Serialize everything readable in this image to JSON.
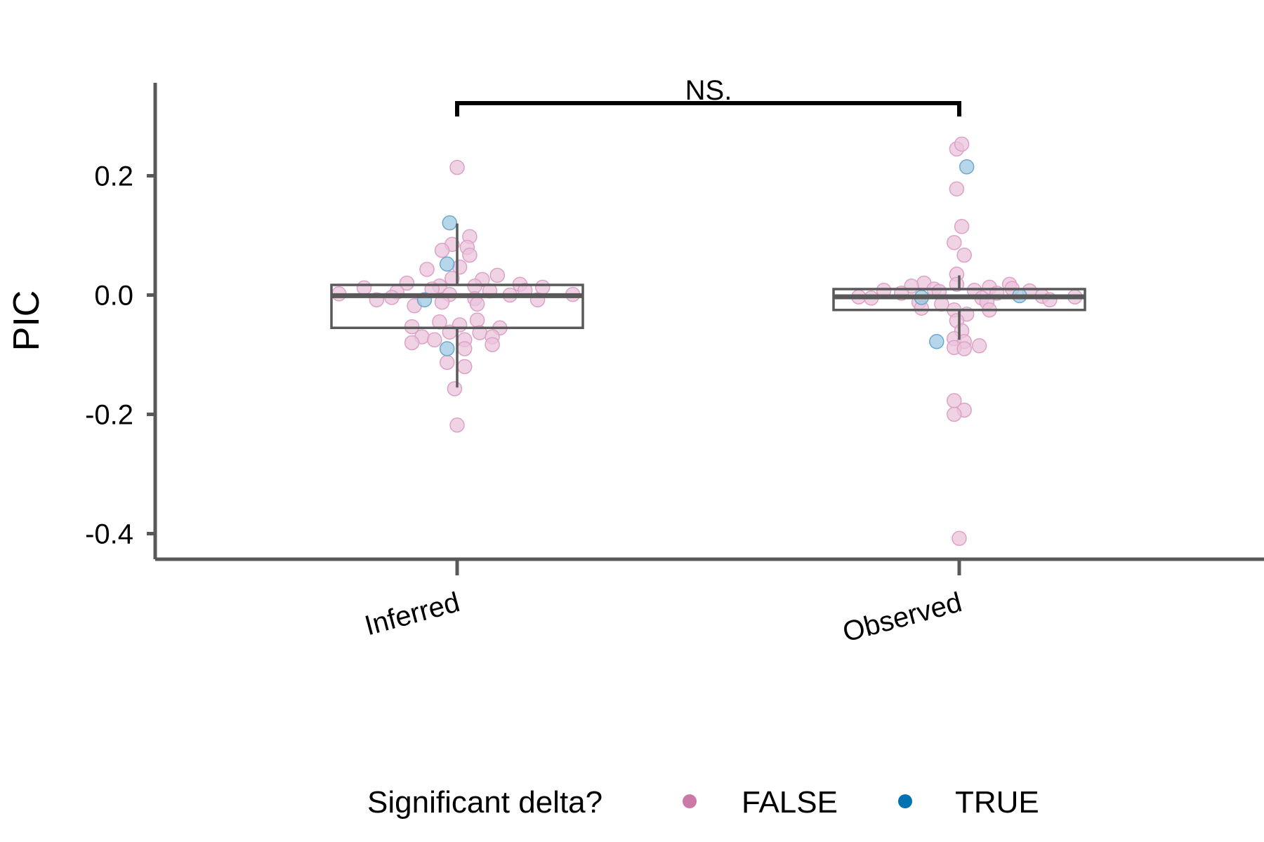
{
  "chart_data": {
    "type": "boxplot",
    "title": "",
    "xlabel": "",
    "ylabel": "PIC",
    "ylim": [
      -0.44,
      0.35
    ],
    "yticks": [
      {
        "value": 0.2,
        "label": "0.2"
      },
      {
        "value": 0.0,
        "label": "0.0"
      },
      {
        "value": -0.2,
        "label": "-0.2"
      },
      {
        "value": -0.4,
        "label": "-0.4"
      }
    ],
    "categories": [
      "Inferred",
      "Observed"
    ],
    "boxes": [
      {
        "category": "Inferred",
        "q1": -0.055,
        "median": -0.001,
        "q3": 0.017,
        "whisker_low": -0.155,
        "whisker_high": 0.12
      },
      {
        "category": "Observed",
        "q1": -0.025,
        "median": -0.003,
        "q3": 0.01,
        "whisker_low": -0.075,
        "whisker_high": 0.033
      }
    ],
    "comparison": {
      "from": "Inferred",
      "to": "Observed",
      "label": "NS.",
      "y": 0.32
    },
    "legend": {
      "title": "Significant delta?",
      "position": "bottom",
      "entries": [
        {
          "label": "FALSE",
          "color": "#cc79a7"
        },
        {
          "label": "TRUE",
          "color": "#0072b2"
        }
      ]
    },
    "grid": false,
    "series": [
      {
        "name": "FALSE",
        "color": "#cc79a7",
        "points": [
          {
            "category": "Inferred",
            "dx": 0.0,
            "y": 0.214
          },
          {
            "category": "Inferred",
            "dx": 0.05,
            "y": 0.098
          },
          {
            "category": "Inferred",
            "dx": -0.02,
            "y": 0.085
          },
          {
            "category": "Inferred",
            "dx": 0.04,
            "y": 0.08
          },
          {
            "category": "Inferred",
            "dx": -0.06,
            "y": 0.075
          },
          {
            "category": "Inferred",
            "dx": 0.05,
            "y": 0.067
          },
          {
            "category": "Inferred",
            "dx": 0.01,
            "y": 0.047
          },
          {
            "category": "Inferred",
            "dx": -0.12,
            "y": 0.043
          },
          {
            "category": "Inferred",
            "dx": 0.16,
            "y": 0.033
          },
          {
            "category": "Inferred",
            "dx": -0.02,
            "y": 0.028
          },
          {
            "category": "Inferred",
            "dx": 0.1,
            "y": 0.026
          },
          {
            "category": "Inferred",
            "dx": -0.2,
            "y": 0.02
          },
          {
            "category": "Inferred",
            "dx": 0.25,
            "y": 0.018
          },
          {
            "category": "Inferred",
            "dx": -0.07,
            "y": 0.015
          },
          {
            "category": "Inferred",
            "dx": 0.07,
            "y": 0.015
          },
          {
            "category": "Inferred",
            "dx": 0.34,
            "y": 0.013
          },
          {
            "category": "Inferred",
            "dx": -0.37,
            "y": 0.012
          },
          {
            "category": "Inferred",
            "dx": -0.1,
            "y": 0.01
          },
          {
            "category": "Inferred",
            "dx": 0.27,
            "y": 0.008
          },
          {
            "category": "Inferred",
            "dx": 0.13,
            "y": 0.007
          },
          {
            "category": "Inferred",
            "dx": -0.24,
            "y": 0.005
          },
          {
            "category": "Inferred",
            "dx": -0.47,
            "y": 0.002
          },
          {
            "category": "Inferred",
            "dx": 0.46,
            "y": 0.001
          },
          {
            "category": "Inferred",
            "dx": -0.03,
            "y": 0.001
          },
          {
            "category": "Inferred",
            "dx": 0.21,
            "y": 0.0
          },
          {
            "category": "Inferred",
            "dx": -0.26,
            "y": -0.004
          },
          {
            "category": "Inferred",
            "dx": 0.07,
            "y": -0.006
          },
          {
            "category": "Inferred",
            "dx": -0.32,
            "y": -0.008
          },
          {
            "category": "Inferred",
            "dx": 0.32,
            "y": -0.008
          },
          {
            "category": "Inferred",
            "dx": -0.06,
            "y": -0.012
          },
          {
            "category": "Inferred",
            "dx": 0.08,
            "y": -0.015
          },
          {
            "category": "Inferred",
            "dx": -0.17,
            "y": -0.018
          },
          {
            "category": "Inferred",
            "dx": 0.08,
            "y": -0.042
          },
          {
            "category": "Inferred",
            "dx": -0.07,
            "y": -0.045
          },
          {
            "category": "Inferred",
            "dx": 0.01,
            "y": -0.05
          },
          {
            "category": "Inferred",
            "dx": -0.18,
            "y": -0.053
          },
          {
            "category": "Inferred",
            "dx": 0.17,
            "y": -0.055
          },
          {
            "category": "Inferred",
            "dx": -0.03,
            "y": -0.062
          },
          {
            "category": "Inferred",
            "dx": 0.09,
            "y": -0.063
          },
          {
            "category": "Inferred",
            "dx": -0.14,
            "y": -0.07
          },
          {
            "category": "Inferred",
            "dx": 0.14,
            "y": -0.07
          },
          {
            "category": "Inferred",
            "dx": -0.09,
            "y": -0.075
          },
          {
            "category": "Inferred",
            "dx": 0.03,
            "y": -0.075
          },
          {
            "category": "Inferred",
            "dx": -0.18,
            "y": -0.08
          },
          {
            "category": "Inferred",
            "dx": 0.14,
            "y": -0.083
          },
          {
            "category": "Inferred",
            "dx": 0.03,
            "y": -0.09
          },
          {
            "category": "Inferred",
            "dx": -0.04,
            "y": -0.113
          },
          {
            "category": "Inferred",
            "dx": 0.03,
            "y": -0.12
          },
          {
            "category": "Inferred",
            "dx": -0.01,
            "y": -0.157
          },
          {
            "category": "Inferred",
            "dx": 0.0,
            "y": -0.218
          },
          {
            "category": "Observed",
            "dx": -0.01,
            "y": 0.245
          },
          {
            "category": "Observed",
            "dx": 0.01,
            "y": 0.253
          },
          {
            "category": "Observed",
            "dx": -0.01,
            "y": 0.178
          },
          {
            "category": "Observed",
            "dx": 0.01,
            "y": 0.115
          },
          {
            "category": "Observed",
            "dx": -0.02,
            "y": 0.088
          },
          {
            "category": "Observed",
            "dx": 0.02,
            "y": 0.067
          },
          {
            "category": "Observed",
            "dx": -0.01,
            "y": 0.035
          },
          {
            "category": "Observed",
            "dx": -0.14,
            "y": 0.02
          },
          {
            "category": "Observed",
            "dx": 0.2,
            "y": 0.018
          },
          {
            "category": "Observed",
            "dx": -0.01,
            "y": 0.018
          },
          {
            "category": "Observed",
            "dx": -0.19,
            "y": 0.015
          },
          {
            "category": "Observed",
            "dx": 0.12,
            "y": 0.013
          },
          {
            "category": "Observed",
            "dx": 0.21,
            "y": 0.011
          },
          {
            "category": "Observed",
            "dx": -0.1,
            "y": 0.01
          },
          {
            "category": "Observed",
            "dx": -0.3,
            "y": 0.008
          },
          {
            "category": "Observed",
            "dx": 0.06,
            "y": 0.008
          },
          {
            "category": "Observed",
            "dx": 0.28,
            "y": 0.007
          },
          {
            "category": "Observed",
            "dx": -0.08,
            "y": 0.006
          },
          {
            "category": "Observed",
            "dx": -0.23,
            "y": 0.003
          },
          {
            "category": "Observed",
            "dx": 0.15,
            "y": 0.003
          },
          {
            "category": "Observed",
            "dx": 0.33,
            "y": -0.002
          },
          {
            "category": "Observed",
            "dx": -0.4,
            "y": -0.003
          },
          {
            "category": "Observed",
            "dx": 0.46,
            "y": -0.003
          },
          {
            "category": "Observed",
            "dx": -0.35,
            "y": -0.005
          },
          {
            "category": "Observed",
            "dx": 0.09,
            "y": -0.005
          },
          {
            "category": "Observed",
            "dx": 0.36,
            "y": -0.008
          },
          {
            "category": "Observed",
            "dx": -0.16,
            "y": -0.012
          },
          {
            "category": "Observed",
            "dx": 0.11,
            "y": -0.012
          },
          {
            "category": "Observed",
            "dx": -0.07,
            "y": -0.015
          },
          {
            "category": "Observed",
            "dx": -0.15,
            "y": -0.022
          },
          {
            "category": "Observed",
            "dx": 0.12,
            "y": -0.025
          },
          {
            "category": "Observed",
            "dx": -0.02,
            "y": -0.025
          },
          {
            "category": "Observed",
            "dx": 0.03,
            "y": -0.032
          },
          {
            "category": "Observed",
            "dx": -0.01,
            "y": -0.043
          },
          {
            "category": "Observed",
            "dx": 0.01,
            "y": -0.06
          },
          {
            "category": "Observed",
            "dx": -0.02,
            "y": -0.073
          },
          {
            "category": "Observed",
            "dx": 0.02,
            "y": -0.078
          },
          {
            "category": "Observed",
            "dx": -0.02,
            "y": -0.088
          },
          {
            "category": "Observed",
            "dx": 0.02,
            "y": -0.09
          },
          {
            "category": "Observed",
            "dx": 0.08,
            "y": -0.085
          },
          {
            "category": "Observed",
            "dx": -0.02,
            "y": -0.177
          },
          {
            "category": "Observed",
            "dx": 0.02,
            "y": -0.193
          },
          {
            "category": "Observed",
            "dx": -0.02,
            "y": -0.2
          },
          {
            "category": "Observed",
            "dx": 0.0,
            "y": -0.408
          }
        ]
      },
      {
        "name": "TRUE",
        "color": "#0072b2",
        "points": [
          {
            "category": "Inferred",
            "dx": -0.03,
            "y": 0.121
          },
          {
            "category": "Inferred",
            "dx": -0.04,
            "y": 0.052
          },
          {
            "category": "Inferred",
            "dx": -0.13,
            "y": -0.008
          },
          {
            "category": "Inferred",
            "dx": -0.04,
            "y": -0.09
          },
          {
            "category": "Observed",
            "dx": 0.03,
            "y": 0.215
          },
          {
            "category": "Observed",
            "dx": -0.15,
            "y": -0.004
          },
          {
            "category": "Observed",
            "dx": 0.24,
            "y": -0.001
          },
          {
            "category": "Observed",
            "dx": -0.09,
            "y": -0.078
          }
        ]
      }
    ]
  }
}
